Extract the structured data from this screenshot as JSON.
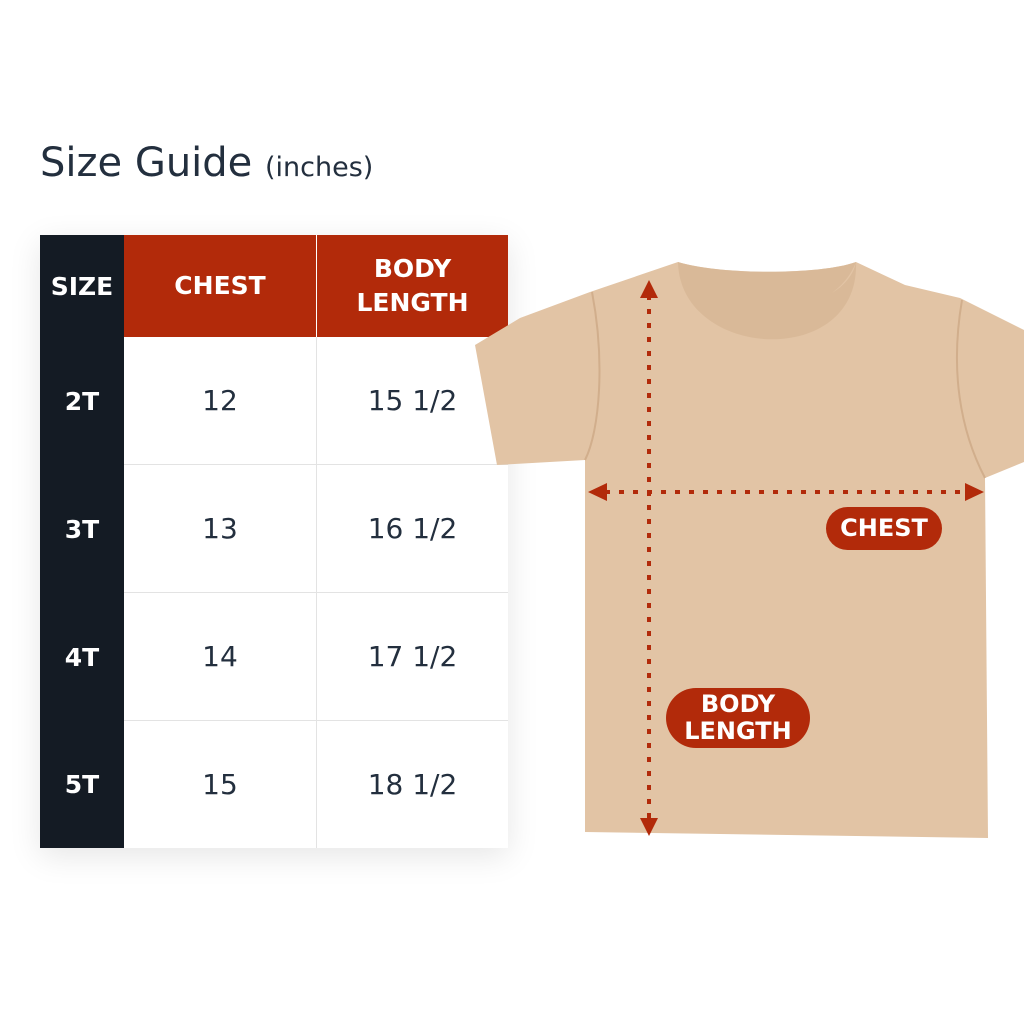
{
  "title": {
    "main": "Size Guide",
    "unit": "(inches)"
  },
  "table": {
    "headers": [
      "SIZE",
      "CHEST",
      "BODY LENGTH"
    ],
    "rows": [
      [
        "2T",
        "12",
        "15 1/2"
      ],
      [
        "3T",
        "13",
        "16 1/2"
      ],
      [
        "4T",
        "14",
        "17 1/2"
      ],
      [
        "5T",
        "15",
        "18 1/2"
      ]
    ]
  },
  "diagram": {
    "chest_label": "CHEST",
    "body_length_label": "BODY LENGTH",
    "shirt_color": "#e2c4a5",
    "accent_color": "#b22a0a",
    "size_column_color": "#141b24"
  }
}
